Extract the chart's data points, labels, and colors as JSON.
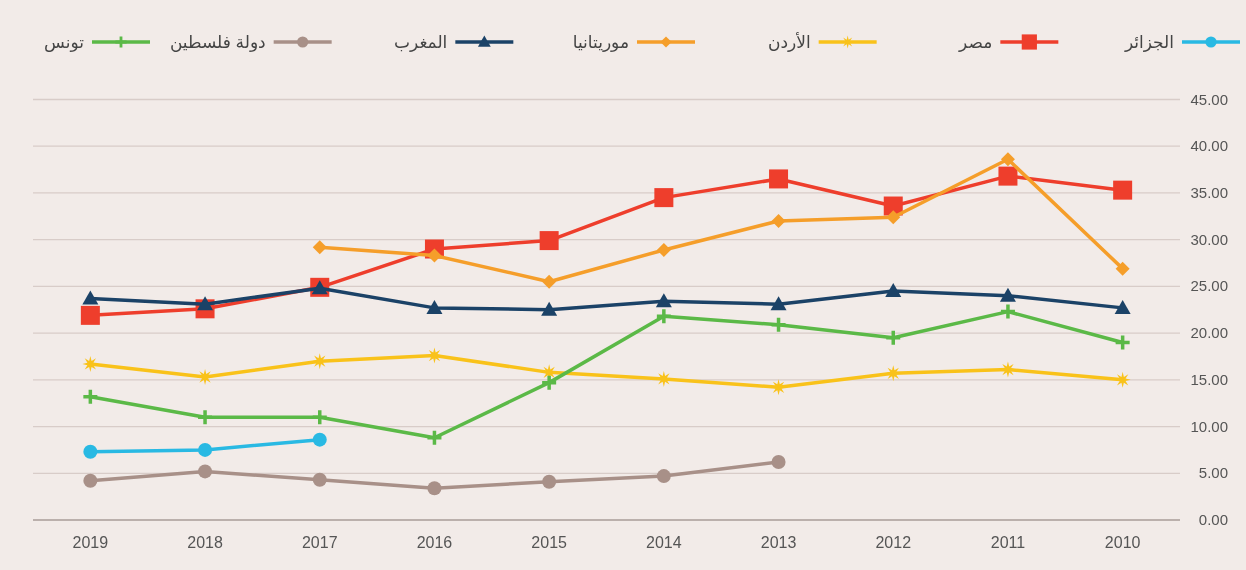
{
  "chart_data": {
    "type": "line",
    "categories": [
      "2019",
      "2018",
      "2017",
      "2016",
      "2015",
      "2014",
      "2013",
      "2012",
      "2011",
      "2010"
    ],
    "ylim": [
      0,
      45
    ],
    "yticks": [
      {
        "value": 0,
        "label": "0.00"
      },
      {
        "value": 5,
        "label": "5.00"
      },
      {
        "value": 10,
        "label": "10.00"
      },
      {
        "value": 15,
        "label": "15.00"
      },
      {
        "value": 20,
        "label": "20.00"
      },
      {
        "value": 25,
        "label": "25.00"
      },
      {
        "value": 30,
        "label": "30.00"
      },
      {
        "value": 35,
        "label": "35.00"
      },
      {
        "value": 40,
        "label": "40.00"
      },
      {
        "value": 45,
        "label": "45.00"
      }
    ],
    "grid": "y",
    "legend": "top",
    "series": [
      {
        "name": "الجزائر",
        "color": "#29b9e3",
        "marker": "circle",
        "values": [
          7.3,
          7.5,
          8.6,
          null,
          null,
          null,
          null,
          null,
          null,
          null
        ]
      },
      {
        "name": "مصر",
        "color": "#ee3e2c",
        "marker": "square",
        "values": [
          21.9,
          22.6,
          24.9,
          29.0,
          29.9,
          34.5,
          36.5,
          33.6,
          36.8,
          35.3
        ]
      },
      {
        "name": "الأردن",
        "color": "#f9c21a",
        "marker": "star",
        "values": [
          16.7,
          15.3,
          17.0,
          17.6,
          15.8,
          15.1,
          14.2,
          15.7,
          16.1,
          15.0
        ]
      },
      {
        "name": "موريتانيا",
        "color": "#f59e2a",
        "marker": "diamond",
        "values": [
          null,
          null,
          29.2,
          28.3,
          25.5,
          28.9,
          32.0,
          32.4,
          38.6,
          26.9
        ]
      },
      {
        "name": "المغرب",
        "color": "#1b4267",
        "marker": "triangle",
        "values": [
          23.7,
          23.1,
          24.8,
          22.7,
          22.5,
          23.4,
          23.1,
          24.5,
          24.0,
          22.7
        ]
      },
      {
        "name": "دولة فلسطين",
        "color": "#a89088",
        "marker": "circle",
        "values": [
          4.2,
          5.2,
          4.3,
          3.4,
          4.1,
          4.7,
          6.2,
          null,
          null,
          null
        ]
      },
      {
        "name": "تونس",
        "color": "#5bb947",
        "marker": "cross",
        "values": [
          13.2,
          11.0,
          11.0,
          8.8,
          14.7,
          21.8,
          20.9,
          19.5,
          22.3,
          19.0
        ]
      }
    ]
  }
}
